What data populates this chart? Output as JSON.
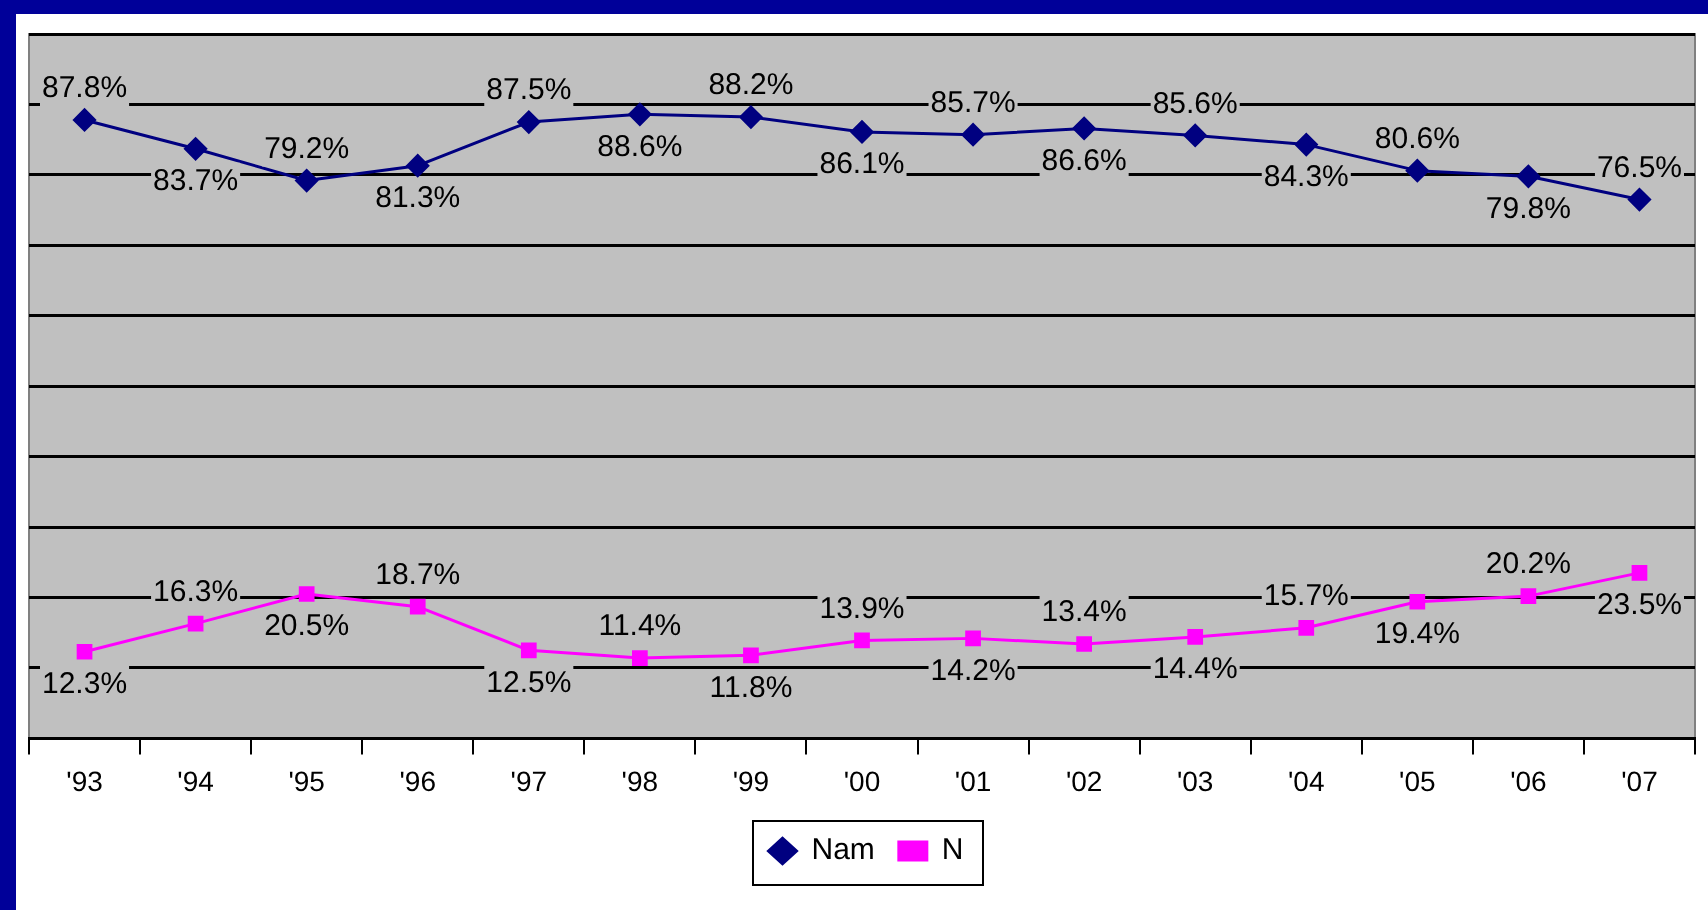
{
  "chart_data": {
    "type": "line",
    "categories": [
      "'93",
      "'94",
      "'95",
      "'96",
      "'97",
      "'98",
      "'99",
      "'00",
      "'01",
      "'02",
      "'03",
      "'04",
      "'05",
      "'06",
      "'07"
    ],
    "series": [
      {
        "name": "Nam",
        "color": "#000080",
        "marker": "diamond",
        "values": [
          87.8,
          83.7,
          79.2,
          81.3,
          87.5,
          88.6,
          88.2,
          86.1,
          85.7,
          86.6,
          85.6,
          84.3,
          80.6,
          79.8,
          76.5
        ],
        "value_labels": [
          "87.8%",
          "83.7%",
          "79.2%",
          "81.3%",
          "87.5%",
          "88.6%",
          "88.2%",
          "86.1%",
          "85.7%",
          "86.6%",
          "85.6%",
          "84.3%",
          "80.6%",
          "79.8%",
          "76.5%"
        ]
      },
      {
        "name": "N",
        "color": "#ff00ff",
        "marker": "square",
        "values": [
          12.3,
          16.3,
          20.5,
          18.7,
          12.5,
          11.4,
          11.8,
          13.9,
          14.2,
          13.4,
          14.4,
          15.7,
          19.4,
          20.2,
          23.5
        ],
        "value_labels": [
          "12.3%",
          "16.3%",
          "20.5%",
          "18.7%",
          "12.5%",
          "11.4%",
          "11.8%",
          "13.9%",
          "14.2%",
          "13.4%",
          "14.4%",
          "15.7%",
          "19.4%",
          "20.2%",
          "23.5%"
        ]
      }
    ],
    "ylim": [
      0,
      100
    ],
    "yticks": [
      {
        "value": 0,
        "label": null
      },
      {
        "value": 10,
        "label": null
      },
      {
        "value": 20,
        "label": null
      },
      {
        "value": 30,
        "label": null
      },
      {
        "value": 40,
        "label": null
      },
      {
        "value": 50,
        "label": null
      },
      {
        "value": 60,
        "label": null
      },
      {
        "value": 70,
        "label": null
      },
      {
        "value": 80,
        "label": null
      },
      {
        "value": 90,
        "label": null
      },
      {
        "value": 100,
        "label": null
      }
    ],
    "tick_labels": "x",
    "grid": "y",
    "legend": "bottom"
  }
}
